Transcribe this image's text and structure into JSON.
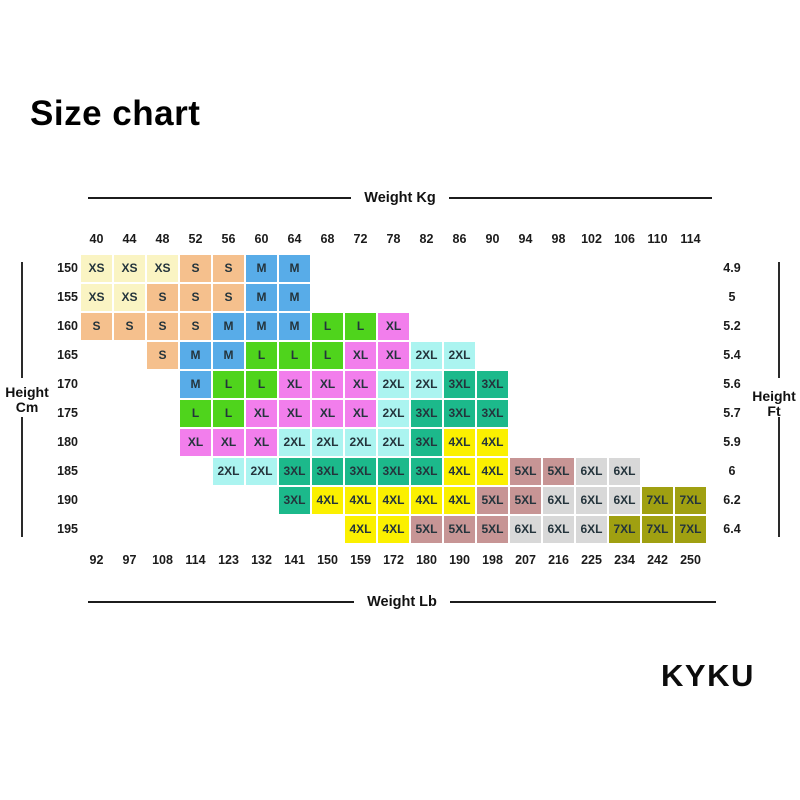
{
  "title": "Size chart",
  "brand": "KYKU",
  "chart_data": {
    "type": "heatmap",
    "title": "Size chart",
    "x_top": {
      "label": "Weight Kg",
      "ticks": [
        "40",
        "44",
        "48",
        "52",
        "56",
        "60",
        "64",
        "68",
        "72",
        "78",
        "82",
        "86",
        "90",
        "94",
        "98",
        "102",
        "106",
        "110",
        "114"
      ]
    },
    "x_bottom": {
      "label": "Weight Lb",
      "ticks": [
        "92",
        "97",
        "108",
        "114",
        "123",
        "132",
        "141",
        "150",
        "159",
        "172",
        "180",
        "190",
        "198",
        "207",
        "216",
        "225",
        "234",
        "242",
        "250"
      ]
    },
    "y_left": {
      "label_lines": [
        "Height",
        "Cm"
      ],
      "ticks": [
        "150",
        "155",
        "160",
        "165",
        "170",
        "175",
        "180",
        "185",
        "190",
        "195"
      ]
    },
    "y_right": {
      "label_lines": [
        "Height",
        "Ft"
      ],
      "ticks": [
        "4.9",
        "5",
        "5.2",
        "5.4",
        "5.6",
        "5.7",
        "5.9",
        "6",
        "6.2",
        "6.4"
      ]
    },
    "size_colors": {
      "XS": "#FAF4C3",
      "S": "#F5C08D",
      "M": "#58ACE8",
      "L": "#4FD41C",
      "XL": "#F27EEC",
      "2XL": "#ABF4F0",
      "3XL": "#1CB98B",
      "4XL": "#FBF000",
      "5XL": "#C79595",
      "6XL": "#D8D8D8",
      "7XL": "#A0A011"
    },
    "grid": [
      [
        "XS",
        "XS",
        "XS",
        "S",
        "S",
        "M",
        "M",
        "",
        "",
        "",
        "",
        "",
        "",
        "",
        "",
        "",
        "",
        "",
        ""
      ],
      [
        "XS",
        "XS",
        "S",
        "S",
        "S",
        "M",
        "M",
        "",
        "",
        "",
        "",
        "",
        "",
        "",
        "",
        "",
        "",
        "",
        ""
      ],
      [
        "S",
        "S",
        "S",
        "S",
        "M",
        "M",
        "M",
        "L",
        "L",
        "XL",
        "",
        "",
        "",
        "",
        "",
        "",
        "",
        "",
        ""
      ],
      [
        "",
        "",
        "S",
        "M",
        "M",
        "L",
        "L",
        "L",
        "XL",
        "XL",
        "2XL",
        "2XL",
        "",
        "",
        "",
        "",
        "",
        "",
        ""
      ],
      [
        "",
        "",
        "",
        "M",
        "L",
        "L",
        "XL",
        "XL",
        "XL",
        "2XL",
        "2XL",
        "3XL",
        "3XL",
        "",
        "",
        "",
        "",
        "",
        ""
      ],
      [
        "",
        "",
        "",
        "L",
        "L",
        "XL",
        "XL",
        "XL",
        "XL",
        "2XL",
        "3XL",
        "3XL",
        "3XL",
        "",
        "",
        "",
        "",
        "",
        ""
      ],
      [
        "",
        "",
        "",
        "XL",
        "XL",
        "XL",
        "2XL",
        "2XL",
        "2XL",
        "2XL",
        "3XL",
        "4XL",
        "4XL",
        "",
        "",
        "",
        "",
        "",
        ""
      ],
      [
        "",
        "",
        "",
        "",
        "2XL",
        "2XL",
        "3XL",
        "3XL",
        "3XL",
        "3XL",
        "3XL",
        "4XL",
        "4XL",
        "5XL",
        "5XL",
        "6XL",
        "6XL",
        "",
        ""
      ],
      [
        "",
        "",
        "",
        "",
        "",
        "",
        "3XL",
        "4XL",
        "4XL",
        "4XL",
        "4XL",
        "4XL",
        "5XL",
        "5XL",
        "6XL",
        "6XL",
        "6XL",
        "7XL",
        "7XL"
      ],
      [
        "",
        "",
        "",
        "",
        "",
        "",
        "",
        "",
        "4XL",
        "4XL",
        "5XL",
        "5XL",
        "5XL",
        "6XL",
        "6XL",
        "6XL",
        "7XL",
        "7XL",
        "7XL"
      ]
    ]
  }
}
